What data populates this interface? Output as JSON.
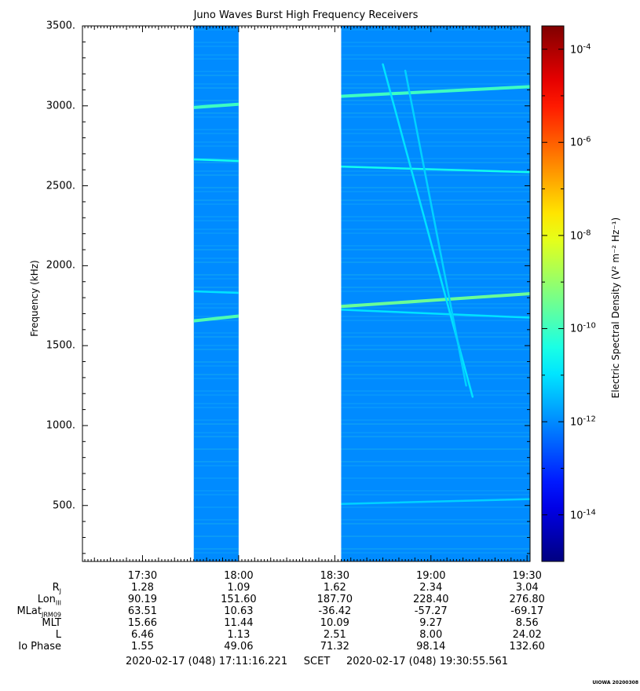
{
  "chart_data": {
    "type": "heatmap",
    "title": "Juno Waves Burst High Frequency Receivers",
    "ylabel": "Frequency (kHz)",
    "colorbar_label": "Electric Spectral Density (V² m⁻² Hz⁻¹)",
    "ylim": [
      150,
      3500
    ],
    "y_ticks": [
      "500.",
      "1000.",
      "1500.",
      "2000.",
      "2500.",
      "3000.",
      "3500."
    ],
    "y_tick_values": [
      500,
      1000,
      1500,
      2000,
      2500,
      3000,
      3500
    ],
    "xlim": [
      "17:11:16",
      "19:30:56"
    ],
    "x_ticks": [
      "17:30",
      "18:00",
      "18:30",
      "19:00",
      "19:30"
    ],
    "colorbar_log_range": [
      -15,
      -3.5
    ],
    "colorbar_ticks": [
      {
        "base": "10",
        "exp": "-4",
        "log": -4
      },
      {
        "base": "10",
        "exp": "-6",
        "log": -6
      },
      {
        "base": "10",
        "exp": "-8",
        "log": -8
      },
      {
        "base": "10",
        "exp": "-10",
        "log": -10
      },
      {
        "base": "10",
        "exp": "-12",
        "log": -12
      },
      {
        "base": "10",
        "exp": "-14",
        "log": -14
      }
    ],
    "background_level_log": -12,
    "data_intervals": [
      {
        "start": "17:46",
        "end": "18:00"
      },
      {
        "start": "18:32",
        "end": "19:30:56"
      }
    ],
    "emission_lines": [
      {
        "t_start": "17:46",
        "f_start": 2990,
        "t_end": "18:00",
        "f_end": 3010,
        "level_log": -10.0
      },
      {
        "t_start": "17:46",
        "f_start": 2665,
        "t_end": "18:00",
        "f_end": 2655,
        "level_log": -10.5
      },
      {
        "t_start": "17:46",
        "f_start": 1840,
        "t_end": "18:00",
        "f_end": 1830,
        "level_log": -11.0
      },
      {
        "t_start": "17:46",
        "f_start": 1655,
        "t_end": "18:00",
        "f_end": 1685,
        "level_log": -9.8
      },
      {
        "t_start": "18:32",
        "f_start": 3060,
        "t_end": "19:30:56",
        "f_end": 3120,
        "level_log": -10.0
      },
      {
        "t_start": "18:32",
        "f_start": 2620,
        "t_end": "19:30:56",
        "f_end": 2585,
        "level_log": -10.5
      },
      {
        "t_start": "18:32",
        "f_start": 1745,
        "t_end": "19:30:56",
        "f_end": 1825,
        "level_log": -9.5
      },
      {
        "t_start": "18:32",
        "f_start": 1725,
        "t_end": "19:30:56",
        "f_end": 1675,
        "level_log": -11.0
      },
      {
        "t_start": "18:45",
        "f_start": 3260,
        "t_end": "19:13",
        "f_end": 1180,
        "level_log": -11.0
      },
      {
        "t_start": "18:52",
        "f_start": 3220,
        "t_end": "19:11",
        "f_end": 1250,
        "level_log": -11.2
      },
      {
        "t_start": "18:32",
        "f_start": 510,
        "t_end": "19:30:56",
        "f_end": 540,
        "level_log": -11.2
      }
    ]
  },
  "ephemeris": {
    "rows": [
      {
        "label": "R",
        "sub": "J",
        "values": [
          "1.28",
          "1.09",
          "1.62",
          "2.34",
          "3.04"
        ]
      },
      {
        "label": "Lon",
        "sub": "III",
        "values": [
          "90.19",
          "151.60",
          "187.70",
          "228.40",
          "276.80"
        ]
      },
      {
        "label": "MLat",
        "sub": "JRM09",
        "values": [
          "63.51",
          "10.63",
          "-36.42",
          "-57.27",
          "-69.17"
        ]
      },
      {
        "label": "MLT",
        "sub": "",
        "values": [
          "15.66",
          "11.44",
          "10.09",
          "9.27",
          "8.56"
        ]
      },
      {
        "label": "L",
        "sub": "",
        "values": [
          "6.46",
          "1.13",
          "2.51",
          "8.00",
          "24.02"
        ]
      },
      {
        "label": "Io Phase",
        "sub": "",
        "values": [
          "1.55",
          "49.06",
          "71.32",
          "98.14",
          "132.60"
        ]
      }
    ]
  },
  "footer": {
    "start": "2020-02-17 (048) 17:11:16.221",
    "scet": "SCET",
    "end": "2020-02-17 (048) 19:30:55.561"
  },
  "stamp": "UIOWA 20200308"
}
